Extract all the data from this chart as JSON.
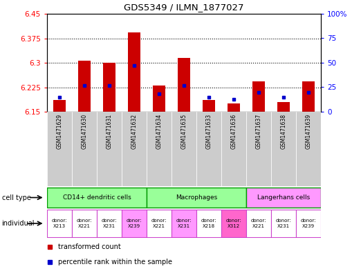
{
  "title": "GDS5349 / ILMN_1877027",
  "samples": [
    "GSM1471629",
    "GSM1471630",
    "GSM1471631",
    "GSM1471632",
    "GSM1471634",
    "GSM1471635",
    "GSM1471633",
    "GSM1471636",
    "GSM1471637",
    "GSM1471638",
    "GSM1471639"
  ],
  "transformed_count": [
    6.185,
    6.307,
    6.3,
    6.392,
    6.23,
    6.315,
    6.185,
    6.175,
    6.242,
    6.18,
    6.242
  ],
  "percentile_rank": [
    0.15,
    0.27,
    0.27,
    0.47,
    0.18,
    0.27,
    0.15,
    0.13,
    0.2,
    0.15,
    0.2
  ],
  "ymin": 6.15,
  "ymax": 6.45,
  "yticks_left": [
    6.15,
    6.225,
    6.3,
    6.375,
    6.45
  ],
  "yticks_right": [
    0,
    25,
    50,
    75,
    100
  ],
  "bar_color": "#cc0000",
  "blue_color": "#0000cc",
  "bar_width": 0.5,
  "cell_types": [
    {
      "label": "CD14+ dendritic cells",
      "start": 0,
      "end": 4,
      "color": "#99ff99"
    },
    {
      "label": "Macrophages",
      "start": 4,
      "end": 8,
      "color": "#99ff99"
    },
    {
      "label": "Langerhans cells",
      "start": 8,
      "end": 11,
      "color": "#ff99ff"
    }
  ],
  "ind_labels": [
    "donor:\nX213",
    "donor:\nX221",
    "donor:\nX231",
    "donor:\nX239",
    "donor:\nX221",
    "donor:\nX231",
    "donor:\nX218",
    "donor:\nX312",
    "donor:\nX221",
    "donor:\nX231",
    "donor:\nX239"
  ],
  "ind_colors": [
    "#ffffff",
    "#ffffff",
    "#ffffff",
    "#ff99ff",
    "#ffffff",
    "#ff99ff",
    "#ffffff",
    "#ff66cc",
    "#ffffff",
    "#ffffff",
    "#ffffff"
  ],
  "tick_bg_color": "#cccccc",
  "legend_items": [
    {
      "label": "transformed count",
      "color": "#cc0000"
    },
    {
      "label": "percentile rank within the sample",
      "color": "#0000cc"
    }
  ],
  "ct_border_color": "#009900",
  "ind_border_color": "#cc44cc"
}
